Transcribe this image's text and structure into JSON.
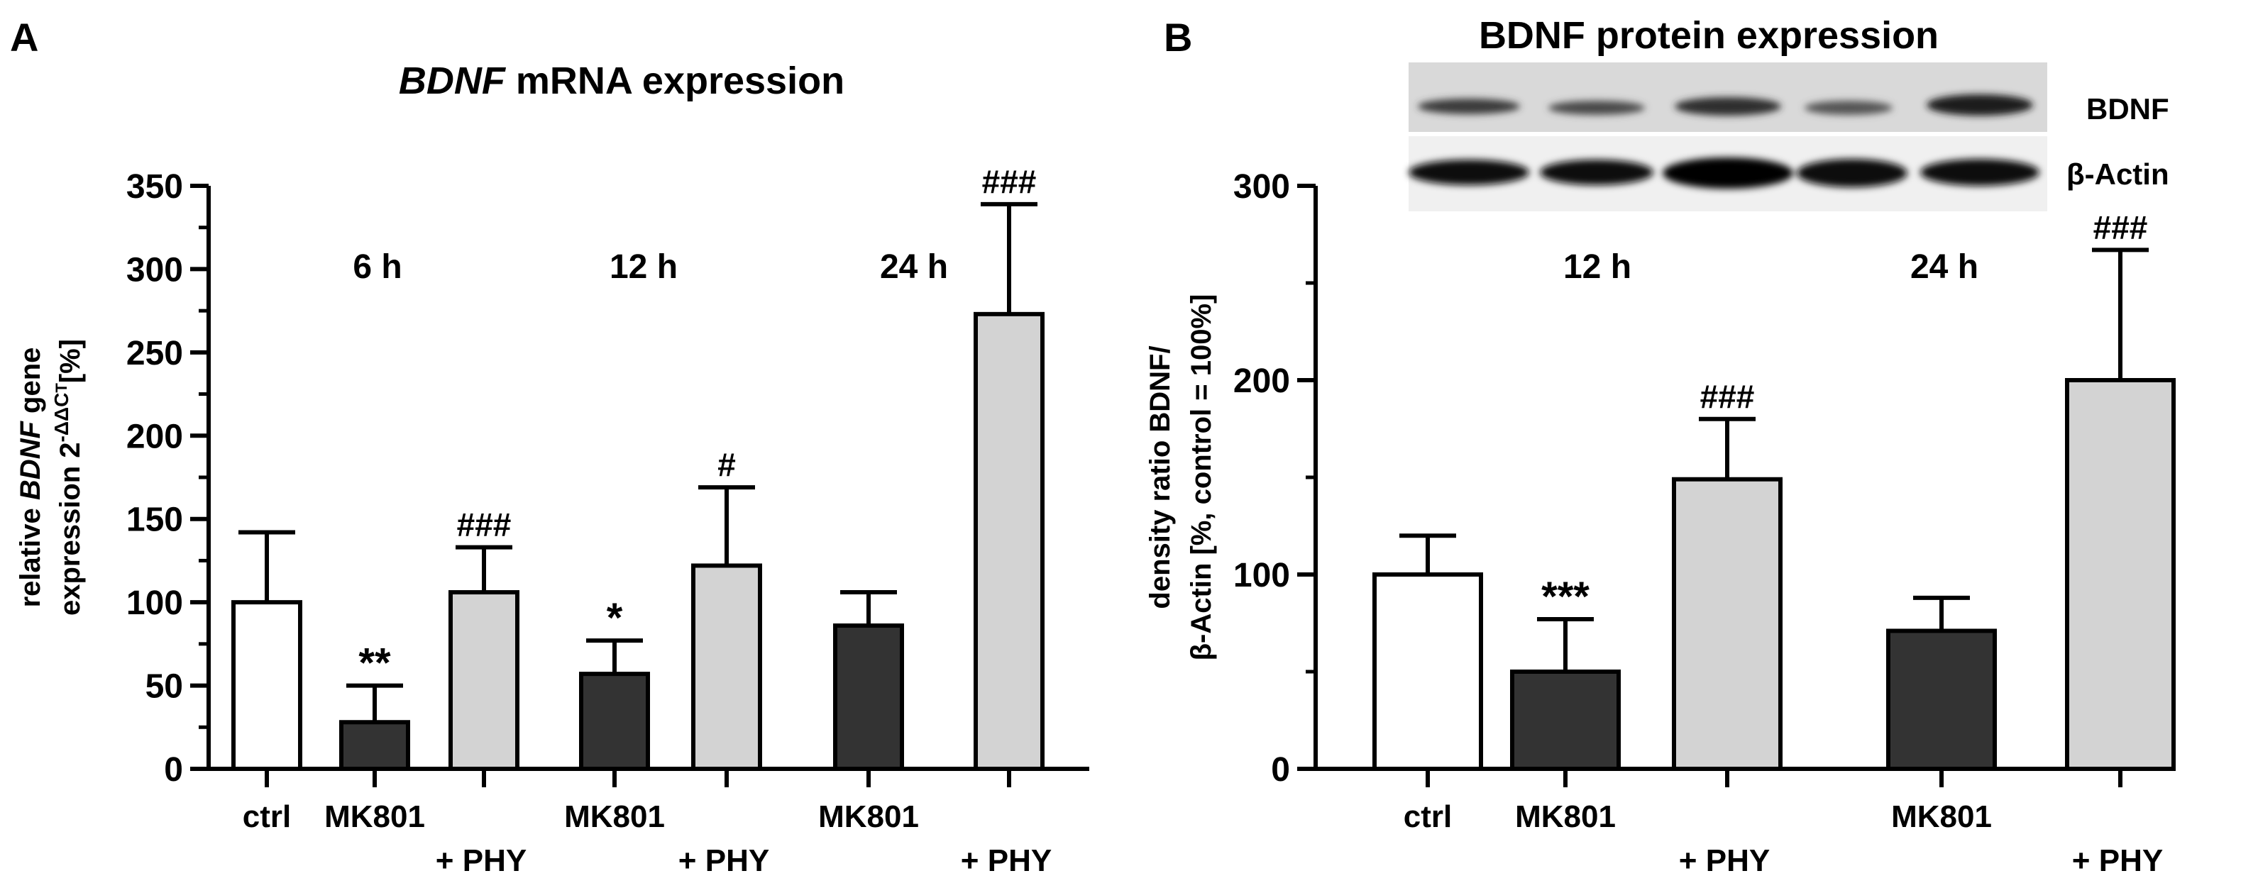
{
  "chart_data": [
    {
      "panel_label": "A",
      "type": "bar",
      "title_italic": "BDNF",
      "title_rest": " mRNA expression",
      "ylabel_line1_prefix": "relative ",
      "ylabel_line1_italic": "BDNF",
      "ylabel_line1_suffix": " gene",
      "ylabel_line2_prefix": "expression 2",
      "ylabel_line2_sup": "-ΔΔC",
      "ylabel_line2_sub": "T",
      "ylabel_line2_suffix": "[%]",
      "ylim": [
        0,
        350
      ],
      "yticks": [
        "0",
        "50",
        "100",
        "150",
        "200",
        "250",
        "300",
        "350"
      ],
      "time_labels": [
        "6 h",
        "12 h",
        "24 h"
      ],
      "bars": [
        {
          "label": "ctrl",
          "value": 100,
          "error": 42,
          "group": "control",
          "sig": ""
        },
        {
          "label": "MK801",
          "value": 28,
          "error": 22,
          "group": "MK801",
          "sig": "**"
        },
        {
          "label": "+ PHY",
          "value": 106,
          "error": 27,
          "group": "MK801 + PHY",
          "sig": "###"
        },
        {
          "label": "MK801",
          "value": 57,
          "error": 20,
          "group": "MK801",
          "sig": "*"
        },
        {
          "label": "+ PHY",
          "value": 122,
          "error": 47,
          "group": "MK801 + PHY",
          "sig": "#"
        },
        {
          "label": "MK801",
          "value": 86,
          "error": 20,
          "group": "MK801",
          "sig": ""
        },
        {
          "label": "+ PHY",
          "value": 273,
          "error": 66,
          "group": "MK801 + PHY",
          "sig": "###"
        }
      ]
    },
    {
      "panel_label": "B",
      "type": "bar",
      "title": "BDNF protein expression",
      "ylabel_line1": "density ratio BDNF/",
      "ylabel_line2": "β-Actin [%, control = 100%]",
      "ylim": [
        0,
        300
      ],
      "yticks": [
        "0",
        "100",
        "200",
        "300"
      ],
      "time_labels": [
        "12 h",
        "24 h"
      ],
      "blot_labels": [
        "BDNF",
        "β-Actin"
      ],
      "bars": [
        {
          "label": "ctrl",
          "value": 100,
          "error": 20,
          "group": "control",
          "sig": ""
        },
        {
          "label": "MK801",
          "value": 50,
          "error": 27,
          "group": "MK801",
          "sig": "***"
        },
        {
          "label": "+ PHY",
          "value": 149,
          "error": 31,
          "group": "MK801 + PHY",
          "sig": "###"
        },
        {
          "label": "MK801",
          "value": 71,
          "error": 17,
          "group": "MK801",
          "sig": ""
        },
        {
          "label": "+ PHY",
          "value": 200,
          "error": 67,
          "group": "MK801 + PHY",
          "sig": "###"
        }
      ]
    }
  ],
  "colors": {
    "control": "#ffffff",
    "MK801": "#333333",
    "MK801 + PHY": "#d3d3d3",
    "axis": "#000000"
  }
}
